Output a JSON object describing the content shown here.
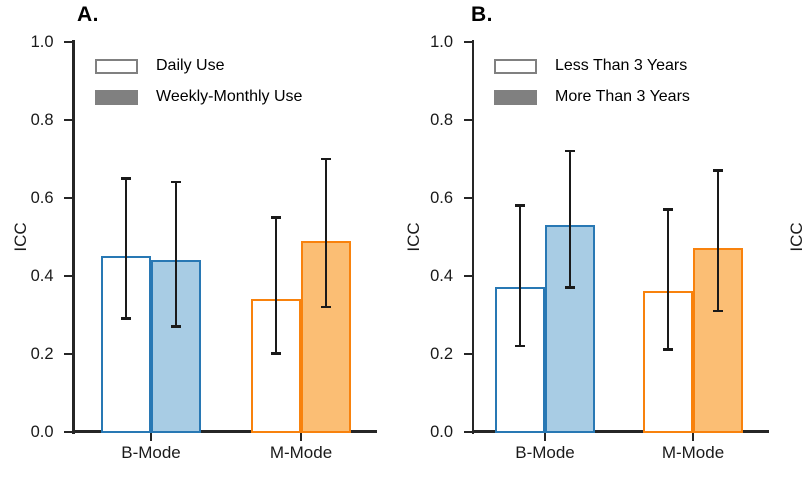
{
  "figure": {
    "description": "Two-panel grouped bar chart of ICC reliability values with 95% confidence-interval error bars",
    "partial_next_panel_ylabel": "ICC"
  },
  "colors": {
    "background": "#FFFFFF",
    "axis": "#262626",
    "error_bar": "#1A1A1A",
    "text": "#000000",
    "legend_gray": "#808080",
    "category_stroke": [
      "#2878B4",
      "#F8820D"
    ],
    "category_fill": [
      "#A8CCE4",
      "#FBBE74"
    ]
  },
  "chart_data": [
    {
      "type": "bar",
      "panel_label": "A.",
      "ylabel": "ICC",
      "xlabel": "",
      "ylim": [
        0.0,
        1.0
      ],
      "yticks": [
        "0.0",
        "0.2",
        "0.4",
        "0.6",
        "0.8",
        "1.0"
      ],
      "categories": [
        "B-Mode",
        "M-Mode"
      ],
      "grid": false,
      "legend_position": "upper-left",
      "legend": [
        {
          "label": "Daily Use",
          "swatch": "outline"
        },
        {
          "label": "Weekly-Monthly Use",
          "swatch": "filled"
        }
      ],
      "series": [
        {
          "name": "Daily Use",
          "style": "outline",
          "values": [
            0.45,
            0.34
          ],
          "err_low": [
            0.29,
            0.2
          ],
          "err_high": [
            0.65,
            0.55
          ]
        },
        {
          "name": "Weekly-Monthly Use",
          "style": "filled",
          "values": [
            0.44,
            0.49
          ],
          "err_low": [
            0.27,
            0.32
          ],
          "err_high": [
            0.64,
            0.7
          ]
        }
      ]
    },
    {
      "type": "bar",
      "panel_label": "B.",
      "ylabel": "ICC",
      "xlabel": "",
      "ylim": [
        0.0,
        1.0
      ],
      "yticks": [
        "0.0",
        "0.2",
        "0.4",
        "0.6",
        "0.8",
        "1.0"
      ],
      "categories": [
        "B-Mode",
        "M-Mode"
      ],
      "grid": false,
      "legend_position": "upper-left",
      "legend": [
        {
          "label": "Less Than 3 Years",
          "swatch": "outline"
        },
        {
          "label": "More Than 3 Years",
          "swatch": "filled"
        }
      ],
      "series": [
        {
          "name": "Less Than 3 Years",
          "style": "outline",
          "values": [
            0.37,
            0.36
          ],
          "err_low": [
            0.22,
            0.21
          ],
          "err_high": [
            0.58,
            0.57
          ]
        },
        {
          "name": "More Than 3 Years",
          "style": "filled",
          "values": [
            0.53,
            0.47
          ],
          "err_low": [
            0.37,
            0.31
          ],
          "err_high": [
            0.72,
            0.67
          ]
        }
      ]
    }
  ]
}
